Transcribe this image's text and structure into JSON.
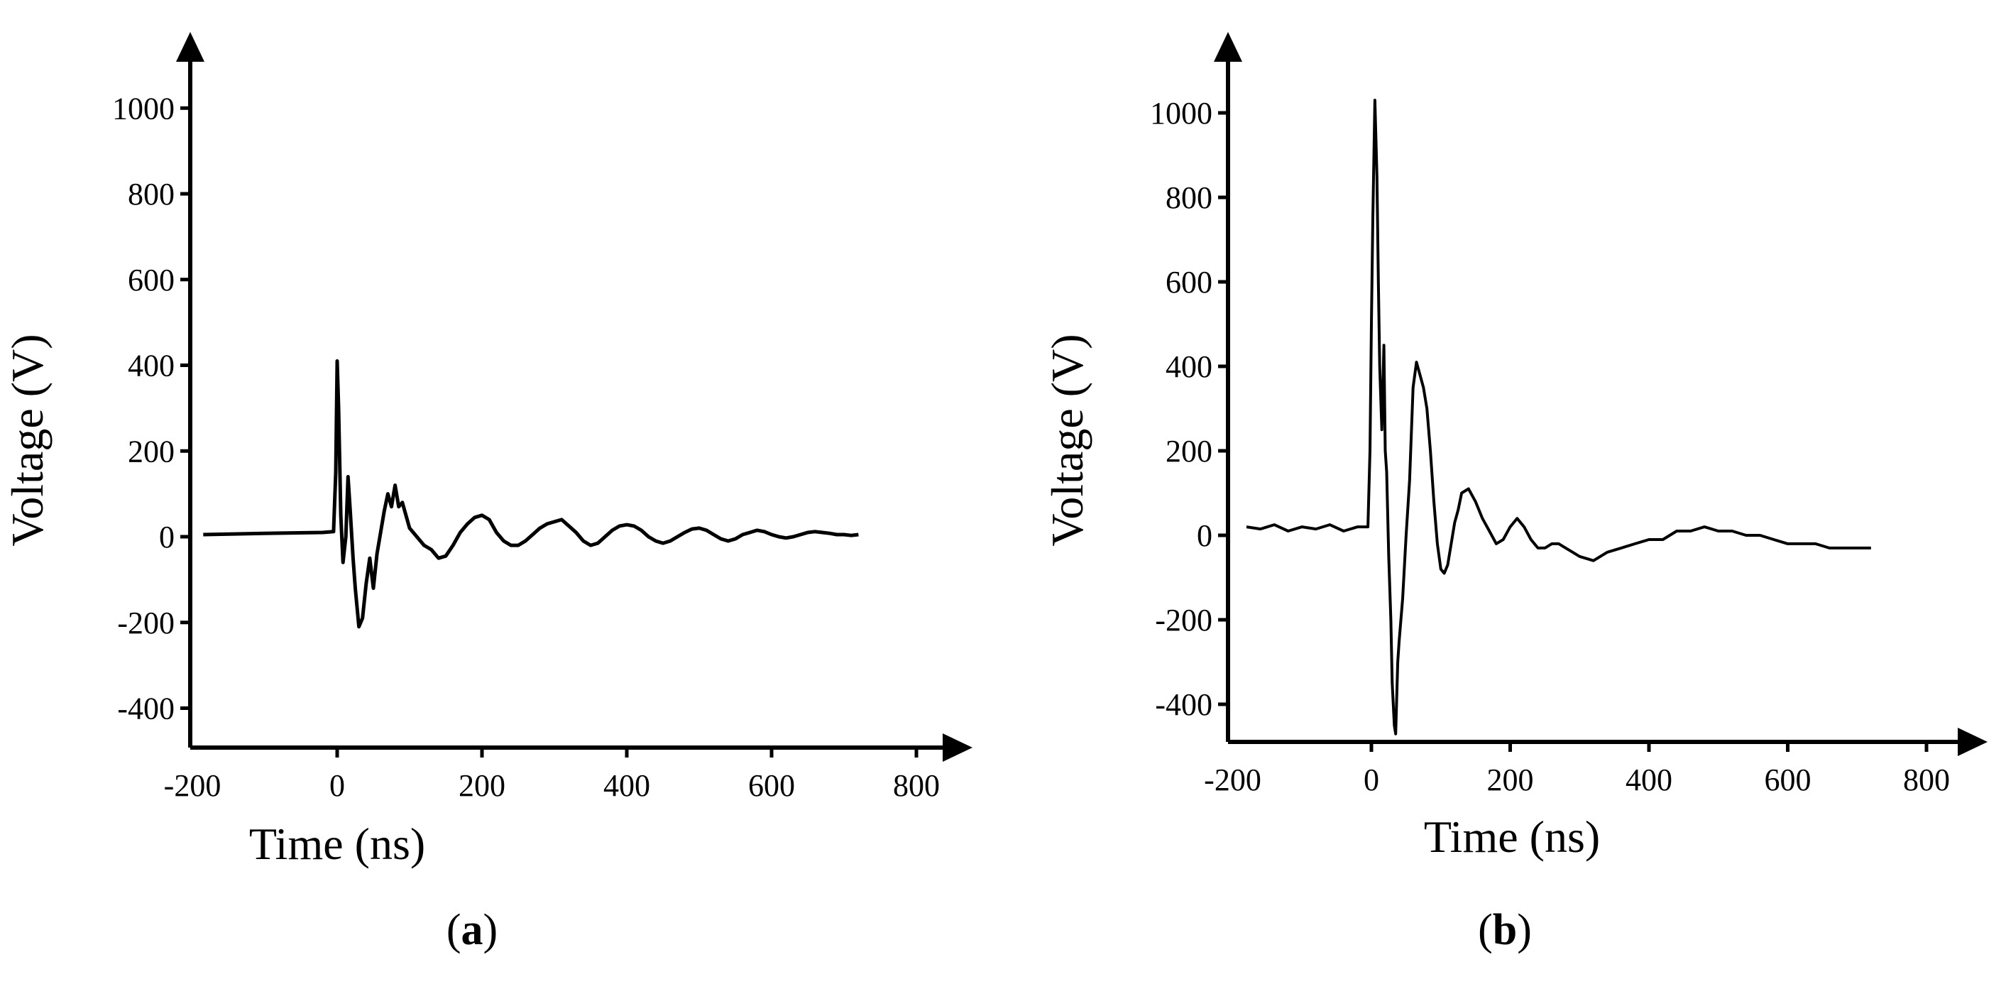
{
  "chart_data": [
    {
      "type": "line",
      "panel_label": "a",
      "xlabel": "Time (ns)",
      "ylabel": "Voltage (V)",
      "xlim": [
        -200,
        800
      ],
      "ylim": [
        -500,
        1000
      ],
      "xticks": [
        -200,
        0,
        200,
        400,
        600,
        800
      ],
      "yticks": [
        -400,
        -200,
        0,
        200,
        400,
        600,
        800,
        1000
      ],
      "grid": false,
      "legend": "none",
      "line_color": "#000000",
      "series": [
        {
          "x": [
            -185,
            -100,
            -20,
            -5,
            -2,
            0,
            2,
            5,
            8,
            12,
            15,
            18,
            22,
            25,
            30,
            35,
            40,
            45,
            50,
            55,
            60,
            65,
            70,
            75,
            80,
            85,
            90,
            95,
            100,
            110,
            120,
            130,
            140,
            150,
            160,
            170,
            180,
            190,
            200,
            210,
            220,
            230,
            240,
            250,
            260,
            270,
            280,
            290,
            300,
            310,
            320,
            330,
            340,
            350,
            360,
            370,
            380,
            390,
            400,
            410,
            420,
            430,
            440,
            450,
            460,
            470,
            480,
            490,
            500,
            510,
            520,
            530,
            540,
            550,
            560,
            570,
            580,
            590,
            600,
            610,
            620,
            630,
            640,
            650,
            660,
            670,
            680,
            690,
            700,
            710,
            720
          ],
          "y": [
            5,
            8,
            10,
            12,
            150,
            410,
            300,
            50,
            -60,
            0,
            140,
            60,
            -50,
            -120,
            -210,
            -190,
            -110,
            -50,
            -120,
            -40,
            10,
            60,
            100,
            70,
            120,
            70,
            80,
            50,
            20,
            0,
            -20,
            -30,
            -50,
            -45,
            -20,
            10,
            30,
            45,
            50,
            40,
            10,
            -10,
            -20,
            -20,
            -10,
            5,
            20,
            30,
            35,
            40,
            25,
            10,
            -10,
            -20,
            -15,
            0,
            15,
            25,
            28,
            25,
            15,
            0,
            -10,
            -15,
            -10,
            0,
            10,
            18,
            20,
            15,
            5,
            -5,
            -10,
            -5,
            5,
            10,
            15,
            12,
            5,
            0,
            -3,
            0,
            5,
            10,
            12,
            10,
            8,
            5,
            5,
            3,
            5
          ]
        }
      ]
    },
    {
      "type": "line",
      "panel_label": "b",
      "xlabel": "Time (ns)",
      "ylabel": "Voltage (V)",
      "xlim": [
        -200,
        800
      ],
      "ylim": [
        -500,
        1100
      ],
      "xticks": [
        -200,
        0,
        200,
        400,
        600,
        800
      ],
      "yticks": [
        -400,
        -200,
        0,
        200,
        400,
        600,
        800,
        1000
      ],
      "grid": false,
      "legend": "none",
      "line_color": "#000000",
      "series": [
        {
          "x": [
            -180,
            -160,
            -140,
            -120,
            -100,
            -80,
            -60,
            -40,
            -20,
            -5,
            -2,
            0,
            2,
            5,
            8,
            10,
            12,
            15,
            18,
            20,
            22,
            25,
            28,
            30,
            33,
            35,
            38,
            40,
            45,
            50,
            55,
            60,
            65,
            70,
            75,
            80,
            85,
            90,
            95,
            100,
            105,
            110,
            115,
            120,
            125,
            130,
            140,
            150,
            160,
            170,
            180,
            190,
            200,
            210,
            220,
            230,
            240,
            250,
            260,
            270,
            280,
            290,
            300,
            320,
            340,
            360,
            380,
            400,
            420,
            440,
            460,
            480,
            500,
            520,
            540,
            560,
            580,
            600,
            620,
            640,
            660,
            680,
            700,
            720
          ],
          "y": [
            20,
            15,
            25,
            10,
            20,
            15,
            25,
            10,
            20,
            20,
            200,
            500,
            750,
            1030,
            850,
            600,
            400,
            250,
            450,
            200,
            150,
            -50,
            -200,
            -350,
            -450,
            -470,
            -300,
            -250,
            -150,
            0,
            130,
            350,
            410,
            380,
            350,
            300,
            200,
            80,
            -20,
            -80,
            -90,
            -70,
            -20,
            30,
            60,
            100,
            110,
            80,
            40,
            10,
            -20,
            -10,
            20,
            40,
            20,
            -10,
            -30,
            -30,
            -20,
            -20,
            -30,
            -40,
            -50,
            -60,
            -40,
            -30,
            -20,
            -10,
            -10,
            10,
            10,
            20,
            10,
            10,
            0,
            0,
            -10,
            -20,
            -20,
            -20,
            -30,
            -30,
            -30,
            -30
          ]
        }
      ]
    }
  ]
}
